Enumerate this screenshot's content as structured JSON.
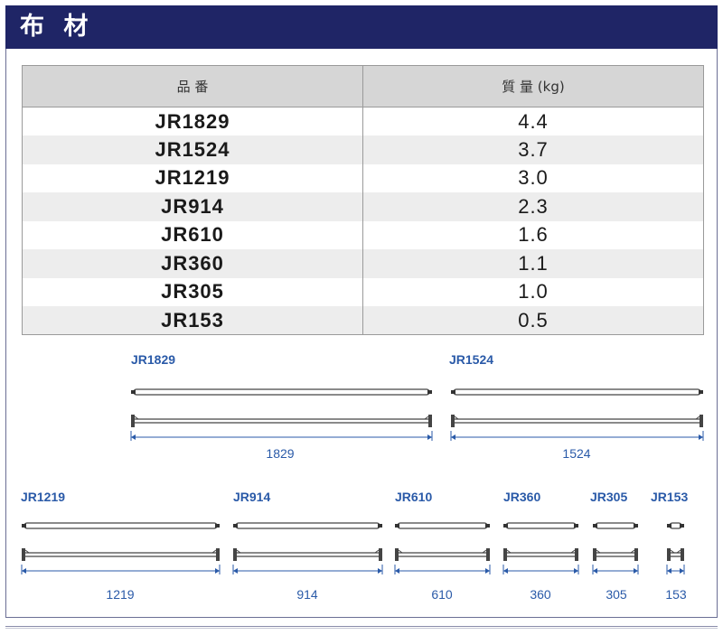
{
  "section": {
    "title": "布 材"
  },
  "table": {
    "headers": [
      "品 番",
      "質 量 (kg)"
    ],
    "rows": [
      [
        "JR1829",
        "4.4"
      ],
      [
        "JR1524",
        "3.7"
      ],
      [
        "JR1219",
        "3.0"
      ],
      [
        "JR914",
        "2.3"
      ],
      [
        "JR610",
        "1.6"
      ],
      [
        "JR360",
        "1.1"
      ],
      [
        "JR305",
        "1.0"
      ],
      [
        "JR153",
        "0.5"
      ]
    ]
  },
  "drawings": [
    {
      "label": "JR1829",
      "dimension": "1829"
    },
    {
      "label": "JR1524",
      "dimension": "1524"
    },
    {
      "label": "JR1219",
      "dimension": "1219"
    },
    {
      "label": "JR914",
      "dimension": "914"
    },
    {
      "label": "JR610",
      "dimension": "610"
    },
    {
      "label": "JR360",
      "dimension": "360"
    },
    {
      "label": "JR305",
      "dimension": "305"
    },
    {
      "label": "JR153",
      "dimension": "153"
    }
  ],
  "colors": {
    "header_bg": "#1f2566",
    "label_blue": "#2a5aa8",
    "table_header_bg": "#d6d6d6",
    "row_stripe": "#ededed"
  }
}
